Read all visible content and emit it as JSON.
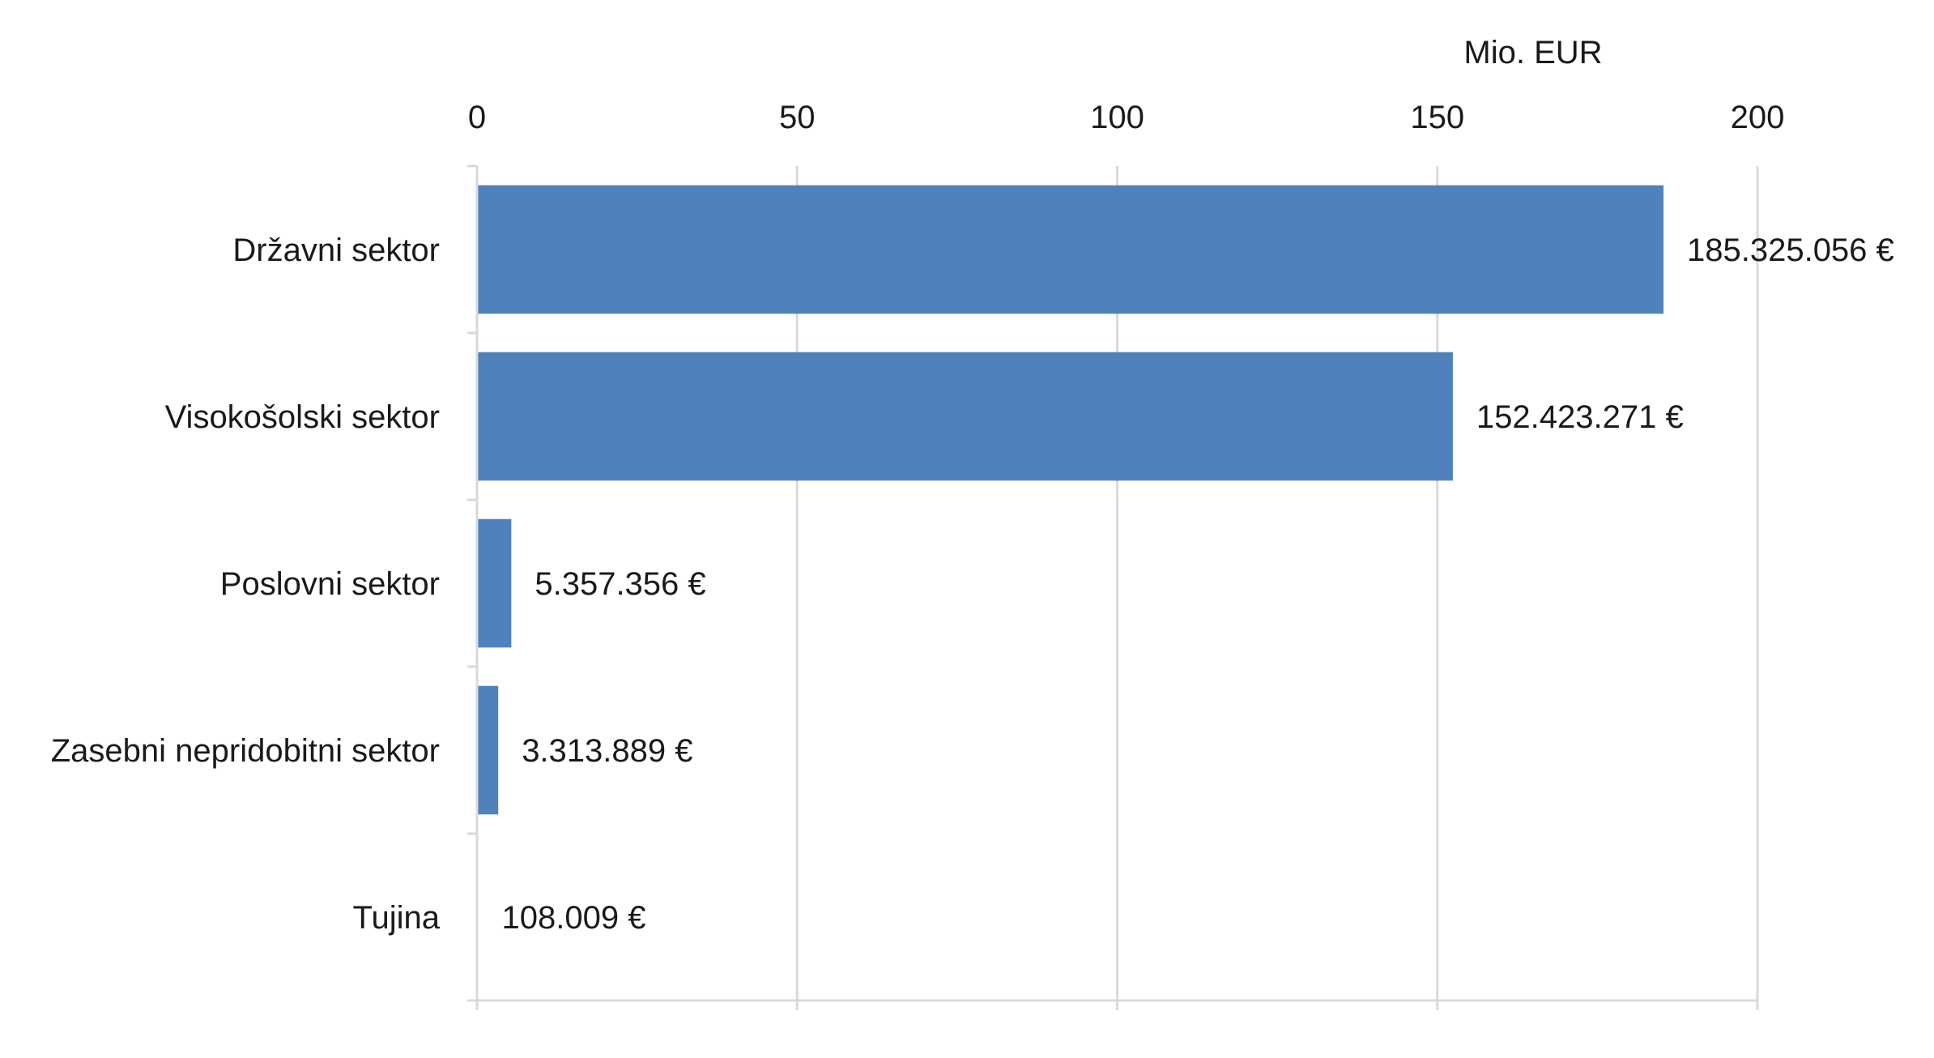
{
  "chart_data": {
    "type": "bar",
    "orientation": "horizontal",
    "unit_label": "Mio. EUR",
    "categories": [
      "Državni sektor",
      "Visokošolski sektor",
      "Poslovni sektor",
      "Zasebni nepridobitni sektor",
      "Tujina"
    ],
    "values": [
      185.325056,
      152.423271,
      5.357356,
      3.313889,
      0.108009
    ],
    "data_labels": [
      "185.325.056 €",
      "152.423.271 €",
      "5.357.356 €",
      "3.313.889 €",
      "108.009 €"
    ],
    "x_ticks": [
      "0",
      "50",
      "100",
      "150",
      "200"
    ],
    "xlim": [
      0,
      200
    ],
    "x_axis_position": "top",
    "grid": true,
    "bar_color": "#4f81bd",
    "grid_color": "#d9d9d9"
  }
}
